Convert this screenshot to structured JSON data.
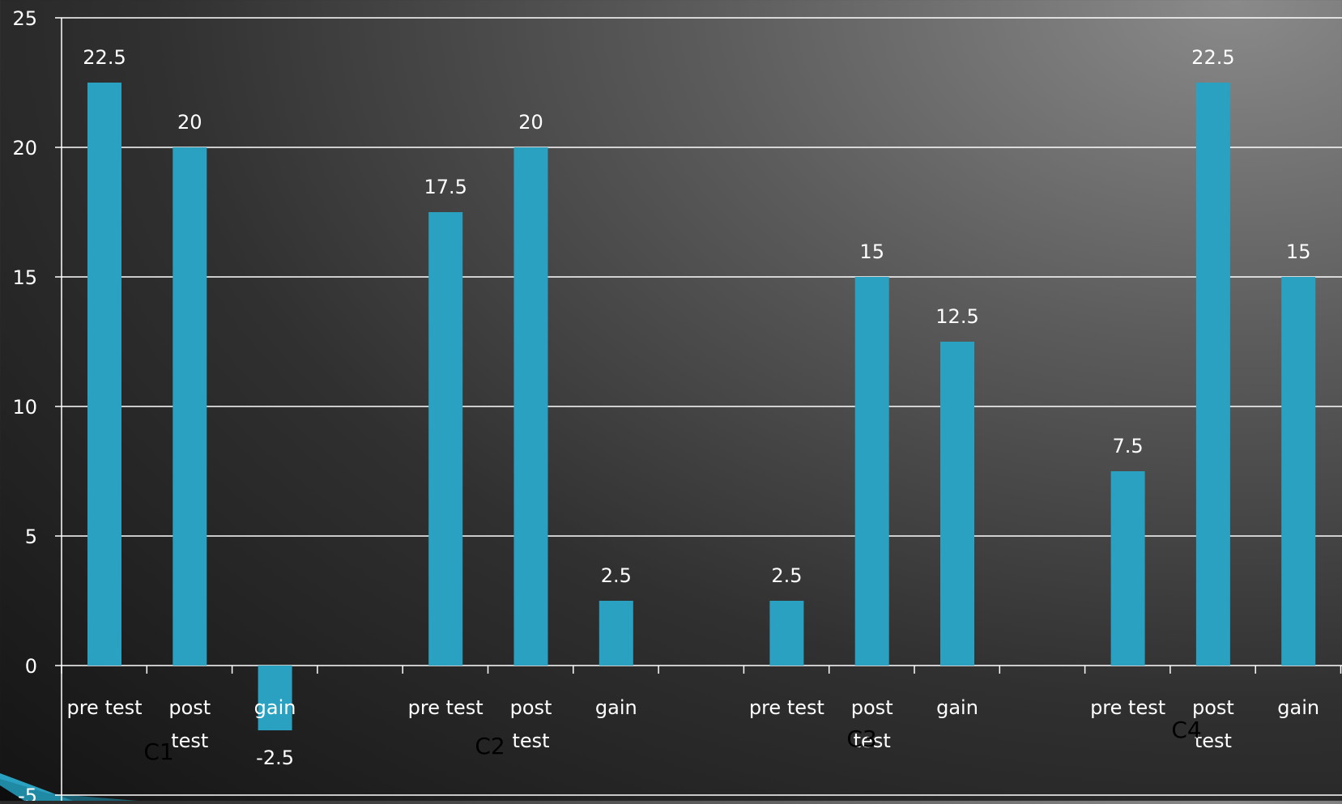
{
  "chart_data": {
    "type": "bar",
    "title": "",
    "xlabel": "",
    "ylabel": "",
    "ylim": [
      -5,
      25
    ],
    "yticks": [
      "-5",
      "0",
      "5",
      "10",
      "15",
      "20",
      "25"
    ],
    "grid": true,
    "legend": "none",
    "bar_color": "#2aa1c0",
    "categories": [
      "pre test",
      "post test",
      "gain",
      "pre test",
      "post test",
      "gain",
      "pre test",
      "post test",
      "gain",
      "pre test",
      "post test",
      "gain"
    ],
    "category_lines": [
      [
        "pre test"
      ],
      [
        "post",
        "test"
      ],
      [
        "gain"
      ],
      [
        "pre test"
      ],
      [
        "post",
        "test"
      ],
      [
        "gain"
      ],
      [
        "pre test"
      ],
      [
        "post",
        "test"
      ],
      [
        "gain"
      ],
      [
        "pre test"
      ],
      [
        "post",
        "test"
      ],
      [
        "gain"
      ]
    ],
    "groups": [
      "C1",
      "C2",
      "C3",
      "C4"
    ],
    "series": [
      {
        "values": [
          22.5,
          20,
          -2.5,
          17.5,
          20,
          2.5,
          2.5,
          15,
          12.5,
          7.5,
          22.5,
          15
        ],
        "labels": [
          "22.5",
          "20",
          "-2.5",
          "17.5",
          "20",
          "2.5",
          "2.5",
          "15",
          "12.5",
          "7.5",
          "22.5",
          "15"
        ]
      }
    ]
  }
}
